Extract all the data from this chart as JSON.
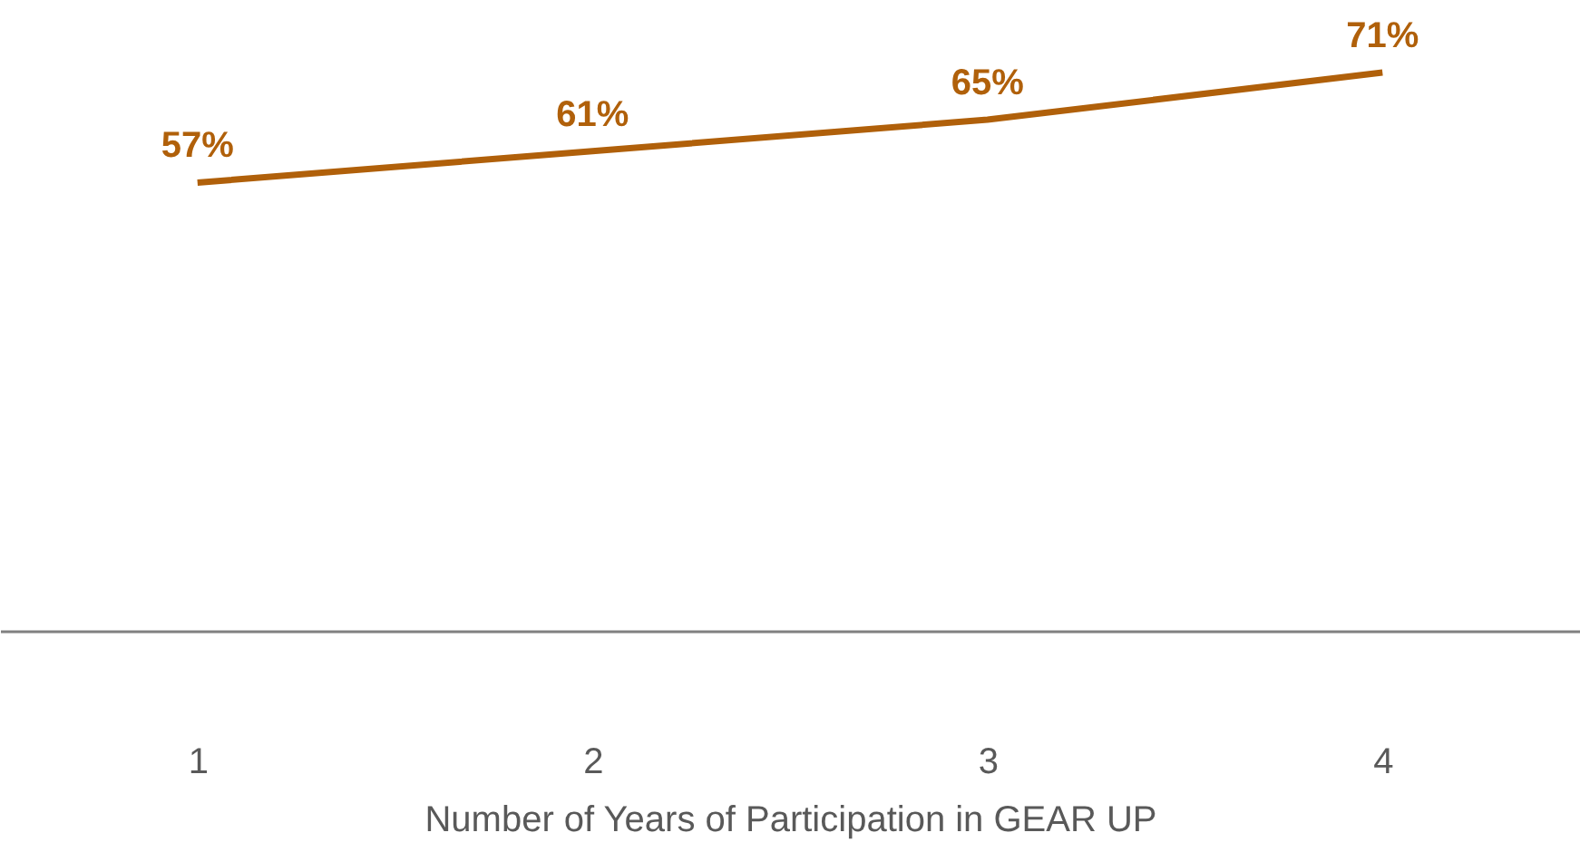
{
  "chart_data": {
    "type": "line",
    "xlabel": "Number of Years of Participation in GEAR UP",
    "categories": [
      "1",
      "2",
      "3",
      "4"
    ],
    "series": [
      {
        "color": "#b0600a",
        "values": [
          57,
          61,
          65,
          71
        ],
        "value_labels": [
          "57%",
          "61%",
          "65%",
          "71%"
        ]
      }
    ]
  }
}
